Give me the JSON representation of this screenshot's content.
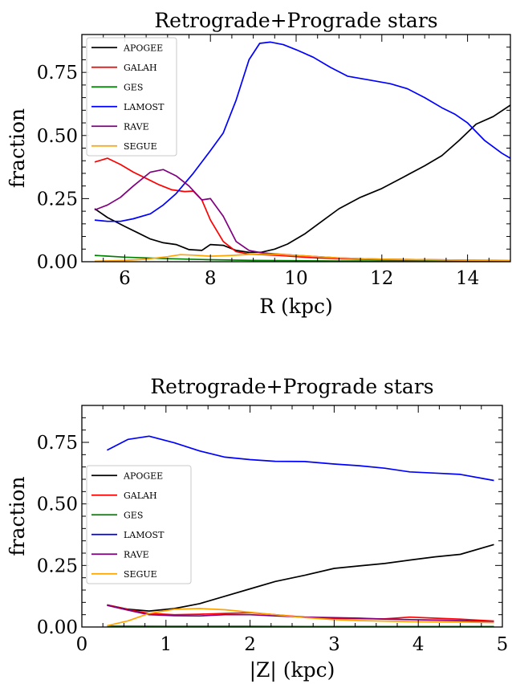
{
  "chart_data": [
    {
      "type": "line",
      "title": "Retrograde+Prograde stars",
      "xlabel": "R (kpc)",
      "ylabel": "fraction",
      "xlim": [
        5.0,
        15.0
      ],
      "ylim": [
        0.0,
        0.9
      ],
      "xticks": [
        6,
        8,
        10,
        12,
        14
      ],
      "xtick_labels": [
        "6",
        "8",
        "10",
        "12",
        "14"
      ],
      "yticks": [
        0.0,
        0.25,
        0.5,
        0.75
      ],
      "ytick_labels": [
        "0.00",
        "0.25",
        "0.50",
        "0.75"
      ],
      "legend": "top-left",
      "series": [
        {
          "name": "APOGEE",
          "color": "#000000",
          "x": [
            5.3,
            5.6,
            6.0,
            6.3,
            6.6,
            6.9,
            7.2,
            7.5,
            7.8,
            8.0,
            8.3,
            8.6,
            8.9,
            9.2,
            9.5,
            9.8,
            10.2,
            10.6,
            11.0,
            11.5,
            12.0,
            12.5,
            13.0,
            13.4,
            13.8,
            14.2,
            14.6,
            15.0
          ],
          "values": [
            0.21,
            0.175,
            0.14,
            0.115,
            0.09,
            0.075,
            0.068,
            0.048,
            0.045,
            0.068,
            0.065,
            0.045,
            0.037,
            0.038,
            0.05,
            0.07,
            0.11,
            0.16,
            0.21,
            0.255,
            0.29,
            0.335,
            0.38,
            0.42,
            0.48,
            0.545,
            0.575,
            0.62
          ]
        },
        {
          "name": "GALAH",
          "color": "#ff0000",
          "x": [
            5.3,
            5.6,
            5.9,
            6.2,
            6.5,
            6.8,
            7.1,
            7.4,
            7.6,
            7.8,
            8.0,
            8.3,
            8.6,
            8.9,
            9.2,
            9.6,
            10.0,
            10.5,
            11.0,
            11.5,
            12.0,
            13.0,
            14.0,
            15.0
          ],
          "values": [
            0.395,
            0.41,
            0.385,
            0.355,
            0.33,
            0.305,
            0.285,
            0.278,
            0.28,
            0.245,
            0.165,
            0.08,
            0.04,
            0.03,
            0.028,
            0.025,
            0.02,
            0.015,
            0.012,
            0.01,
            0.008,
            0.006,
            0.005,
            0.004
          ]
        },
        {
          "name": "GES",
          "color": "#008000",
          "x": [
            5.3,
            6.0,
            7.0,
            8.0,
            9.0,
            10.0,
            11.0,
            12.0,
            13.0,
            14.0,
            15.0
          ],
          "values": [
            0.025,
            0.018,
            0.012,
            0.008,
            0.005,
            0.004,
            0.003,
            0.003,
            0.002,
            0.002,
            0.002
          ]
        },
        {
          "name": "LAMOST",
          "color": "#0000ff",
          "x": [
            5.3,
            5.6,
            5.9,
            6.2,
            6.6,
            6.9,
            7.2,
            7.6,
            8.0,
            8.3,
            8.6,
            8.9,
            9.15,
            9.4,
            9.7,
            10.0,
            10.4,
            10.8,
            11.2,
            11.7,
            12.2,
            12.6,
            13.0,
            13.4,
            13.7,
            14.0,
            14.4,
            14.8,
            15.0
          ],
          "values": [
            0.165,
            0.16,
            0.16,
            0.17,
            0.19,
            0.225,
            0.27,
            0.35,
            0.44,
            0.51,
            0.64,
            0.8,
            0.865,
            0.87,
            0.86,
            0.84,
            0.81,
            0.77,
            0.735,
            0.72,
            0.705,
            0.685,
            0.65,
            0.61,
            0.585,
            0.55,
            0.48,
            0.43,
            0.41
          ]
        },
        {
          "name": "RAVE",
          "color": "#800080",
          "x": [
            5.3,
            5.6,
            5.9,
            6.2,
            6.6,
            6.9,
            7.2,
            7.5,
            7.8,
            8.0,
            8.3,
            8.6,
            8.9,
            9.2,
            9.6,
            10.0,
            10.5,
            11.0,
            11.5,
            12.0,
            13.0,
            14.0,
            15.0
          ],
          "values": [
            0.205,
            0.225,
            0.255,
            0.3,
            0.355,
            0.365,
            0.34,
            0.3,
            0.245,
            0.25,
            0.18,
            0.08,
            0.045,
            0.035,
            0.03,
            0.025,
            0.02,
            0.015,
            0.012,
            0.01,
            0.008,
            0.006,
            0.005
          ]
        },
        {
          "name": "SEGUE",
          "color": "#ffa500",
          "x": [
            5.3,
            6.0,
            6.5,
            7.0,
            7.3,
            7.6,
            8.0,
            8.5,
            9.0,
            9.5,
            10.0,
            10.5,
            11.0,
            11.5,
            12.0,
            13.0,
            14.0,
            15.0
          ],
          "values": [
            0.002,
            0.005,
            0.01,
            0.02,
            0.028,
            0.026,
            0.022,
            0.025,
            0.03,
            0.03,
            0.025,
            0.02,
            0.015,
            0.012,
            0.01,
            0.008,
            0.006,
            0.005
          ]
        }
      ]
    },
    {
      "type": "line",
      "title": "Retrograde+Prograde stars",
      "xlabel": "|Z| (kpc)",
      "ylabel": "fraction",
      "xlim": [
        0.0,
        5.0
      ],
      "ylim": [
        0.0,
        0.9
      ],
      "xticks": [
        0,
        1,
        2,
        3,
        4,
        5
      ],
      "xtick_labels": [
        "0",
        "1",
        "2",
        "3",
        "4",
        "5"
      ],
      "yticks": [
        0.0,
        0.25,
        0.5,
        0.75
      ],
      "ytick_labels": [
        "0.00",
        "0.25",
        "0.50",
        "0.75"
      ],
      "legend": "center-left",
      "series": [
        {
          "name": "APOGEE",
          "color": "#000000",
          "x": [
            0.3,
            0.55,
            0.8,
            1.1,
            1.4,
            1.7,
            2.0,
            2.3,
            2.65,
            3.0,
            3.3,
            3.6,
            3.9,
            4.2,
            4.5,
            4.9
          ],
          "values": [
            0.09,
            0.072,
            0.065,
            0.075,
            0.095,
            0.125,
            0.155,
            0.185,
            0.21,
            0.238,
            0.248,
            0.258,
            0.272,
            0.285,
            0.295,
            0.335
          ]
        },
        {
          "name": "GALAH",
          "color": "#ff0000",
          "x": [
            0.3,
            0.55,
            0.8,
            1.1,
            1.4,
            1.7,
            2.0,
            2.3,
            2.65,
            3.0,
            3.3,
            3.6,
            3.9,
            4.2,
            4.5,
            4.9
          ],
          "values": [
            0.09,
            0.07,
            0.055,
            0.05,
            0.052,
            0.055,
            0.058,
            0.05,
            0.04,
            0.035,
            0.034,
            0.033,
            0.04,
            0.036,
            0.032,
            0.024
          ]
        },
        {
          "name": "GES",
          "color": "#008000",
          "x": [
            0.3,
            1.0,
            2.0,
            3.0,
            4.0,
            4.9
          ],
          "values": [
            0.004,
            0.003,
            0.003,
            0.002,
            0.002,
            0.002
          ]
        },
        {
          "name": "LAMOST",
          "color": "#0000ff",
          "x": [
            0.3,
            0.55,
            0.8,
            1.1,
            1.4,
            1.7,
            2.0,
            2.3,
            2.65,
            3.0,
            3.3,
            3.6,
            3.9,
            4.2,
            4.5,
            4.9
          ],
          "values": [
            0.718,
            0.762,
            0.775,
            0.748,
            0.715,
            0.69,
            0.68,
            0.673,
            0.672,
            0.662,
            0.655,
            0.645,
            0.63,
            0.625,
            0.62,
            0.595
          ]
        },
        {
          "name": "RAVE",
          "color": "#800080",
          "x": [
            0.3,
            0.55,
            0.8,
            1.1,
            1.4,
            1.7,
            2.0,
            2.3,
            2.65,
            3.0,
            3.3,
            3.6,
            3.9,
            4.2,
            4.5,
            4.9
          ],
          "values": [
            0.088,
            0.068,
            0.05,
            0.046,
            0.045,
            0.05,
            0.05,
            0.045,
            0.04,
            0.038,
            0.036,
            0.032,
            0.03,
            0.028,
            0.026,
            0.02
          ]
        },
        {
          "name": "SEGUE",
          "color": "#ffa500",
          "x": [
            0.3,
            0.55,
            0.8,
            1.1,
            1.4,
            1.7,
            2.0,
            2.3,
            2.65,
            3.0,
            3.3,
            3.6,
            3.9,
            4.2,
            4.5,
            4.9
          ],
          "values": [
            0.005,
            0.025,
            0.055,
            0.072,
            0.075,
            0.07,
            0.06,
            0.05,
            0.038,
            0.03,
            0.026,
            0.024,
            0.022,
            0.021,
            0.02,
            0.018
          ]
        }
      ]
    }
  ]
}
